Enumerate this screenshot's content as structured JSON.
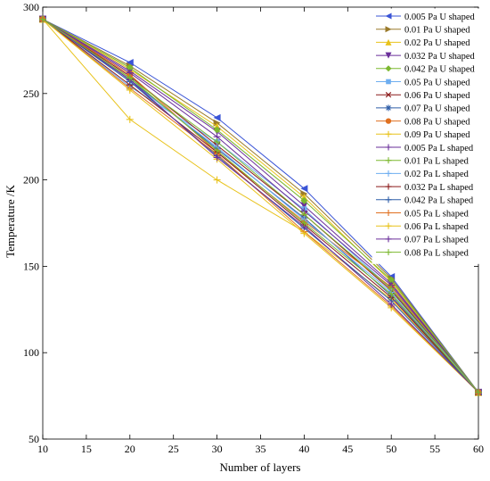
{
  "chart_data": {
    "type": "line",
    "title": "",
    "xlabel": "Number of layers",
    "ylabel": "Temperature /K",
    "xlim": [
      10,
      60
    ],
    "ylim": [
      50,
      300
    ],
    "xticks": [
      10,
      15,
      20,
      25,
      30,
      35,
      40,
      45,
      50,
      55,
      60
    ],
    "yticks": [
      50,
      100,
      150,
      200,
      250,
      300
    ],
    "grid": false,
    "legend": "top-right",
    "x": [
      10,
      20,
      30,
      40,
      50,
      60
    ],
    "series": [
      {
        "name": "0.005 Pa U shaped",
        "color": "#3a54d6",
        "marker": "triangle-left",
        "values": [
          293,
          268,
          236,
          195,
          144,
          77
        ]
      },
      {
        "name": "0.01 Pa U shaped",
        "color": "#9a7a2a",
        "marker": "triangle-right",
        "values": [
          293,
          266,
          233,
          192,
          143,
          77
        ]
      },
      {
        "name": "0.02 Pa U shaped",
        "color": "#e8c21a",
        "marker": "triangle-up",
        "values": [
          293,
          264,
          231,
          190,
          141,
          77
        ]
      },
      {
        "name": "0.032 Pa U shaped",
        "color": "#6a2f9a",
        "marker": "triangle-down",
        "values": [
          293,
          263,
          228,
          185,
          140,
          77
        ]
      },
      {
        "name": "0.042 Pa U shaped",
        "color": "#7cb82f",
        "marker": "diamond",
        "values": [
          293,
          265,
          229,
          188,
          142,
          77
        ]
      },
      {
        "name": "0.05 Pa U shaped",
        "color": "#6eaef0",
        "marker": "square",
        "values": [
          293,
          254,
          222,
          183,
          137,
          77
        ]
      },
      {
        "name": "0.06 Pa U shaped",
        "color": "#8b1a1a",
        "marker": "x",
        "values": [
          293,
          260,
          220,
          180,
          136,
          77
        ]
      },
      {
        "name": "0.07 Pa U shaped",
        "color": "#2f5ea8",
        "marker": "asterisk",
        "values": [
          293,
          258,
          218,
          178,
          133,
          77
        ]
      },
      {
        "name": "0.08 Pa U shaped",
        "color": "#e07020",
        "marker": "circle",
        "values": [
          293,
          261,
          216,
          176,
          138,
          77
        ]
      },
      {
        "name": "0.09 Pa U shaped",
        "color": "#e8c21a",
        "marker": "plus",
        "values": [
          293,
          235,
          200,
          170,
          131,
          77
        ]
      },
      {
        "name": "0.005 Pa L shaped",
        "color": "#6a2f9a",
        "marker": "plus",
        "values": [
          293,
          262,
          225,
          182,
          139,
          77
        ]
      },
      {
        "name": "0.01 Pa L shaped",
        "color": "#7cb82f",
        "marker": "plus",
        "values": [
          293,
          259,
          222,
          180,
          137,
          77
        ]
      },
      {
        "name": "0.02 Pa L shaped",
        "color": "#6eaef0",
        "marker": "plus",
        "values": [
          293,
          257,
          219,
          177,
          135,
          77
        ]
      },
      {
        "name": "0.032 Pa L shaped",
        "color": "#8b1a1a",
        "marker": "plus",
        "values": [
          293,
          255,
          216,
          174,
          132,
          77
        ]
      },
      {
        "name": "0.042 Pa L shaped",
        "color": "#2f5ea8",
        "marker": "plus",
        "values": [
          293,
          257,
          214,
          172,
          130,
          77
        ]
      },
      {
        "name": "0.05 Pa L shaped",
        "color": "#e07020",
        "marker": "plus",
        "values": [
          293,
          253,
          215,
          170,
          127,
          77
        ]
      },
      {
        "name": "0.06 Pa L shaped",
        "color": "#e8c21a",
        "marker": "plus",
        "values": [
          293,
          252,
          212,
          169,
          126,
          77
        ]
      },
      {
        "name": "0.07 Pa L shaped",
        "color": "#6a2f9a",
        "marker": "plus",
        "values": [
          293,
          258,
          213,
          173,
          128,
          77
        ]
      },
      {
        "name": "0.08 Pa L shaped",
        "color": "#7cb82f",
        "marker": "plus",
        "values": [
          293,
          259,
          217,
          175,
          134,
          77
        ]
      }
    ]
  }
}
